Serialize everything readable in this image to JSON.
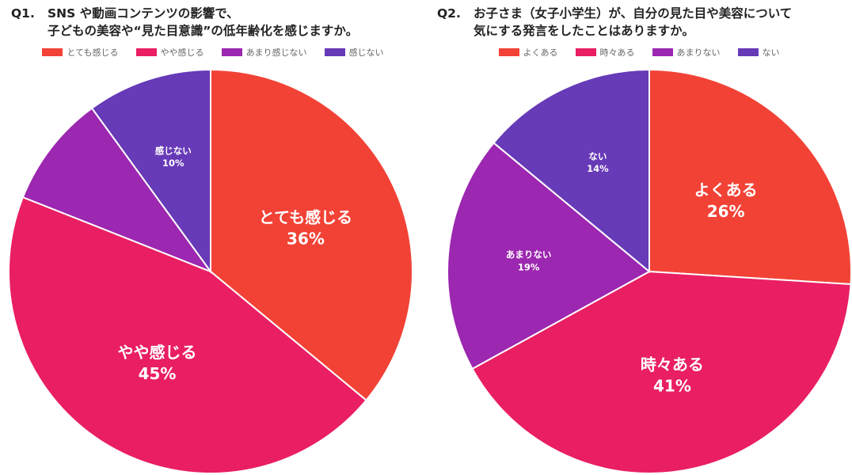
{
  "chart_data": [
    {
      "type": "pie",
      "title_prefix": "Q1.",
      "title_line1": "SNS や動画コンテンツの影響で、",
      "title_line2": "子どもの美容や“見た目意識”の低年齢化を感じますか。",
      "categories": [
        "とても感じる",
        "やや感じる",
        "あまり感じない",
        "感じない"
      ],
      "values": [
        36,
        45,
        9,
        10
      ],
      "labels": [
        "36%",
        "45%",
        "",
        "10%"
      ],
      "colors": [
        "#f24236",
        "#e91e63",
        "#9c27b0",
        "#673ab7"
      ],
      "start": "12 o'clock, clockwise"
    },
    {
      "type": "pie",
      "title_prefix": "Q2.",
      "title_line1": "お子さま（女子小学生）が、自分の見た目や美容について",
      "title_line2": "気にする発言をしたことはありますか。",
      "categories": [
        "よくある",
        "時々ある",
        "あまりない",
        "ない"
      ],
      "values": [
        26,
        41,
        19,
        14
      ],
      "labels": [
        "26%",
        "41%",
        "19%",
        "14%"
      ],
      "colors": [
        "#f24236",
        "#e91e63",
        "#9c27b0",
        "#673ab7"
      ],
      "start": "12 o'clock, clockwise"
    }
  ]
}
